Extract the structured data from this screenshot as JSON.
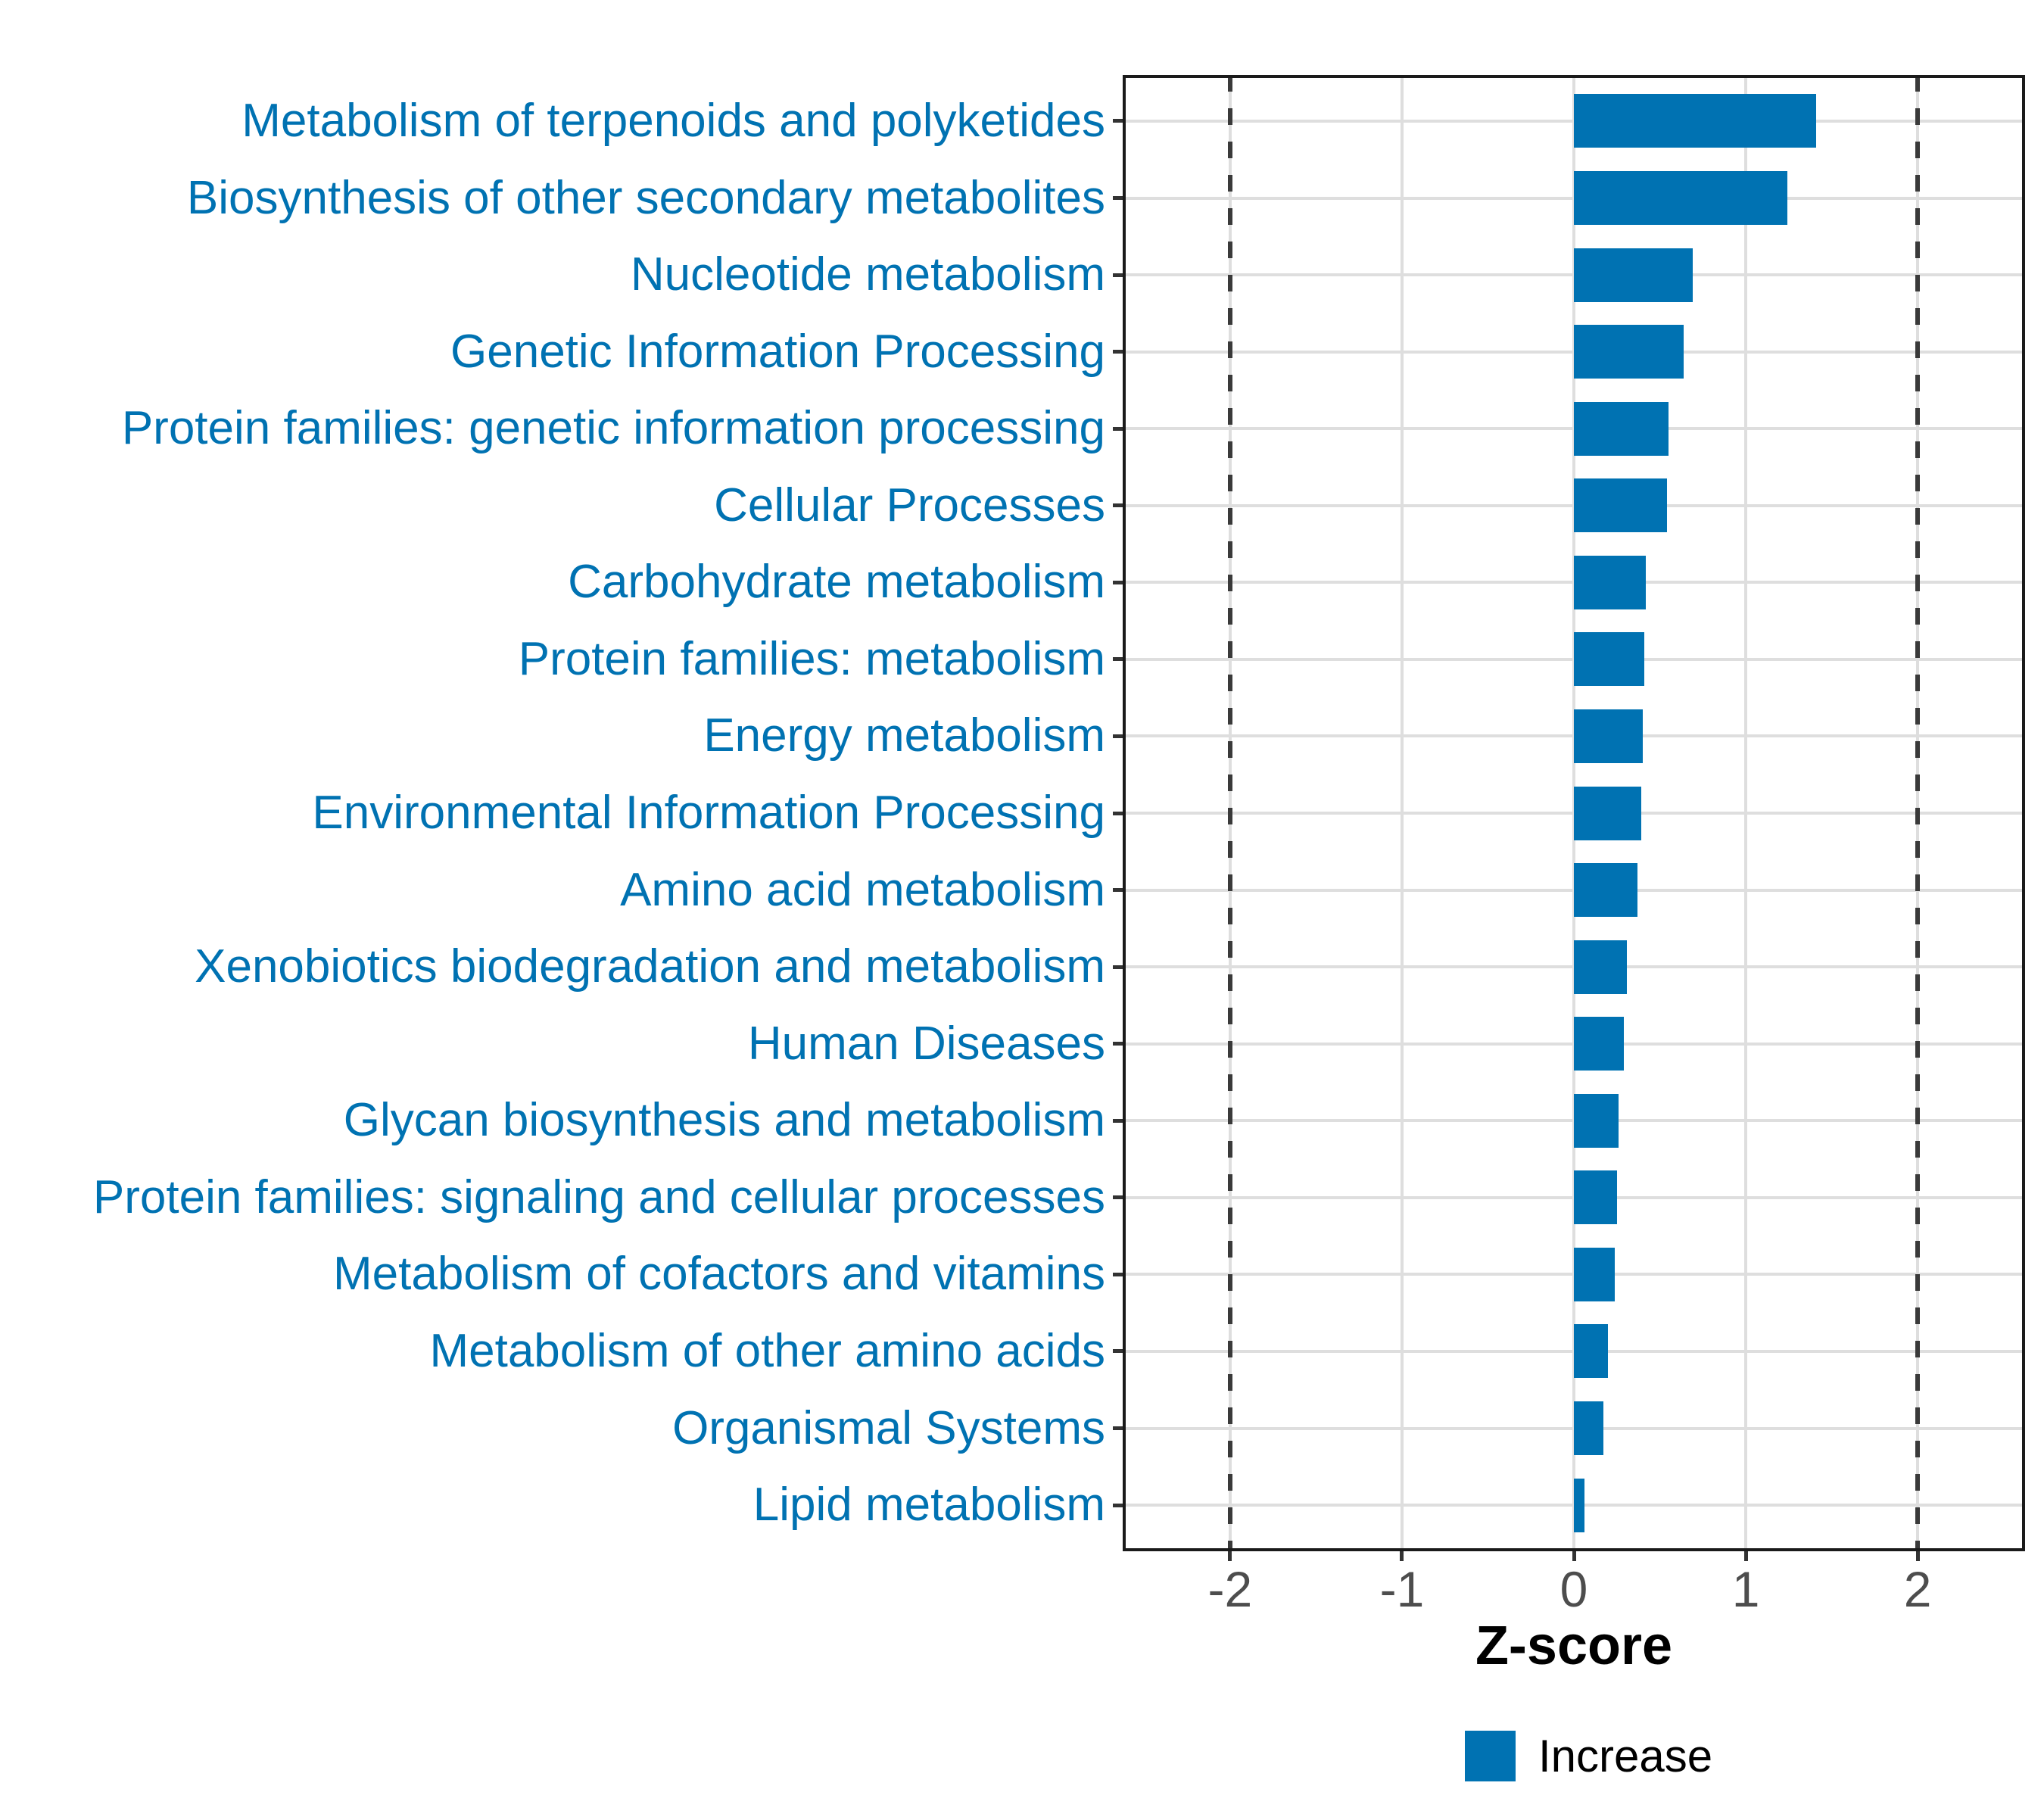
{
  "chart_data": {
    "type": "bar",
    "orientation": "horizontal",
    "title": "",
    "xlabel": "Z-score",
    "ylabel": "",
    "xlim": [
      -2.625,
      2.625
    ],
    "x_ticks": [
      -2,
      -1,
      0,
      1,
      2
    ],
    "x_tick_labels": [
      "-2",
      "-1",
      "0",
      "1",
      "2"
    ],
    "reference_dashed_lines_x": [
      -2,
      2
    ],
    "grid": "major gridlines on, light gray; horizontal gridline per category; vertical gridline per x tick",
    "legend_position": "bottom-center",
    "legend_entries": [
      {
        "label": "Increase",
        "color": "#0072b2"
      }
    ],
    "categories": [
      "Metabolism of terpenoids and polyketides",
      "Biosynthesis of other secondary metabolites",
      "Nucleotide metabolism",
      "Genetic Information Processing",
      "Protein families: genetic information processing",
      "Cellular Processes",
      "Carbohydrate metabolism",
      "Protein families: metabolism",
      "Energy metabolism",
      "Environmental Information Processing",
      "Amino acid metabolism",
      "Xenobiotics biodegradation and metabolism",
      "Human Diseases",
      "Glycan biosynthesis and metabolism",
      "Protein families: signaling and cellular processes",
      "Metabolism of cofactors and vitamins",
      "Metabolism of other amino acids",
      "Organismal Systems",
      "Lipid metabolism"
    ],
    "values": [
      1.41,
      1.24,
      0.69,
      0.64,
      0.55,
      0.54,
      0.42,
      0.41,
      0.4,
      0.39,
      0.37,
      0.31,
      0.29,
      0.26,
      0.25,
      0.24,
      0.2,
      0.17,
      0.06
    ]
  },
  "colors": {
    "bar": "#0072b2",
    "category_label": "#0072b2",
    "gridline": "#dedede",
    "dashed_line": "#3a3a3a",
    "panel_border": "#1a1a1a",
    "tick_mark": "#333333",
    "x_tick_label": "#4d4d4d",
    "background": "#ffffff"
  },
  "x_axis": {
    "title": "Z-score"
  },
  "legend": {
    "increase_label": "Increase"
  }
}
